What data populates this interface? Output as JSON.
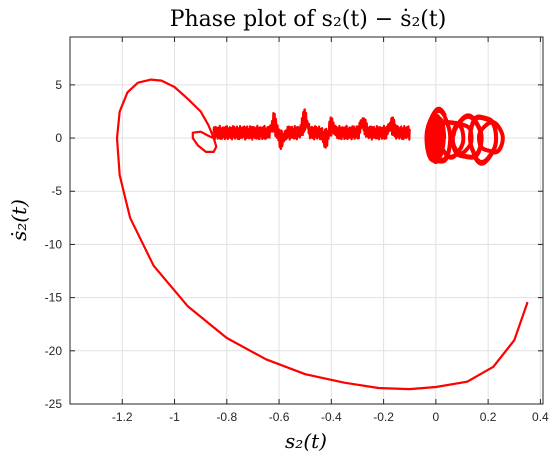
{
  "chart_data": {
    "type": "line",
    "title": "Phase plot of s₂(t) − ṡ₂(t)",
    "xlabel": "s₂(t)",
    "ylabel": "ṡ₂(t)",
    "xlim": [
      -1.4,
      0.41
    ],
    "ylim": [
      -25,
      9.5
    ],
    "grid": true,
    "xticks": [
      "-1.2",
      "-1",
      "-0.8",
      "-0.6",
      "-0.4",
      "-0.2",
      "0",
      "0.2",
      "0.4"
    ],
    "yticks": [
      "5",
      "0",
      "-5",
      "-10",
      "-15",
      "-20",
      "-25"
    ],
    "series": [
      {
        "color": "#ff0000",
        "spiral": {
          "x": [
            0.35,
            0.3,
            0.22,
            0.12,
            0.0,
            -0.1,
            -0.22,
            -0.35,
            -0.5,
            -0.65,
            -0.8,
            -0.95,
            -1.08,
            -1.17,
            -1.21,
            -1.22,
            -1.21,
            -1.18,
            -1.14,
            -1.09,
            -1.05,
            -1.0,
            -0.95,
            -0.9,
            -0.87,
            -0.85,
            -0.84,
            -0.85,
            -0.88,
            -0.91,
            -0.93,
            -0.93,
            -0.9,
            -0.87,
            -0.85
          ],
          "y": [
            -15.5,
            -19.0,
            -21.5,
            -22.9,
            -23.4,
            -23.6,
            -23.5,
            -23.0,
            -22.2,
            -20.8,
            -18.8,
            -15.8,
            -12.0,
            -7.5,
            -3.5,
            0.0,
            2.5,
            4.3,
            5.2,
            5.5,
            5.4,
            4.8,
            3.7,
            2.5,
            1.2,
            0.0,
            -0.8,
            -1.3,
            -1.3,
            -0.7,
            0.0,
            0.5,
            0.6,
            0.2,
            0.0
          ]
        },
        "oscillation": {
          "x_start": -0.85,
          "x_end": -0.1,
          "y_center": 0.5,
          "bursts": [
            {
              "x": -0.62,
              "amp": 1.5
            },
            {
              "x": -0.59,
              "amp": -1.3
            },
            {
              "x": -0.5,
              "amp": 2.3
            },
            {
              "x": -0.42,
              "amp": -1.2
            },
            {
              "x": -0.4,
              "amp": 1.3
            },
            {
              "x": -0.28,
              "amp": 1.7
            },
            {
              "x": -0.17,
              "amp": 1.4
            }
          ]
        },
        "loops": [
          {
            "cx": 0.0,
            "rx": 0.035,
            "ry": 2.2
          },
          {
            "cx": 0.01,
            "rx": 0.05,
            "ry": 2.6
          },
          {
            "cx": 0.06,
            "rx": 0.05,
            "ry": 1.8
          },
          {
            "cx": 0.12,
            "rx": 0.06,
            "ry": 2.1
          },
          {
            "cx": 0.18,
            "rx": 0.055,
            "ry": 2.3
          },
          {
            "cx": 0.21,
            "rx": 0.05,
            "ry": 1.5
          },
          {
            "cx": 0.1,
            "rx": 0.04,
            "ry": 1.5
          }
        ]
      }
    ]
  }
}
